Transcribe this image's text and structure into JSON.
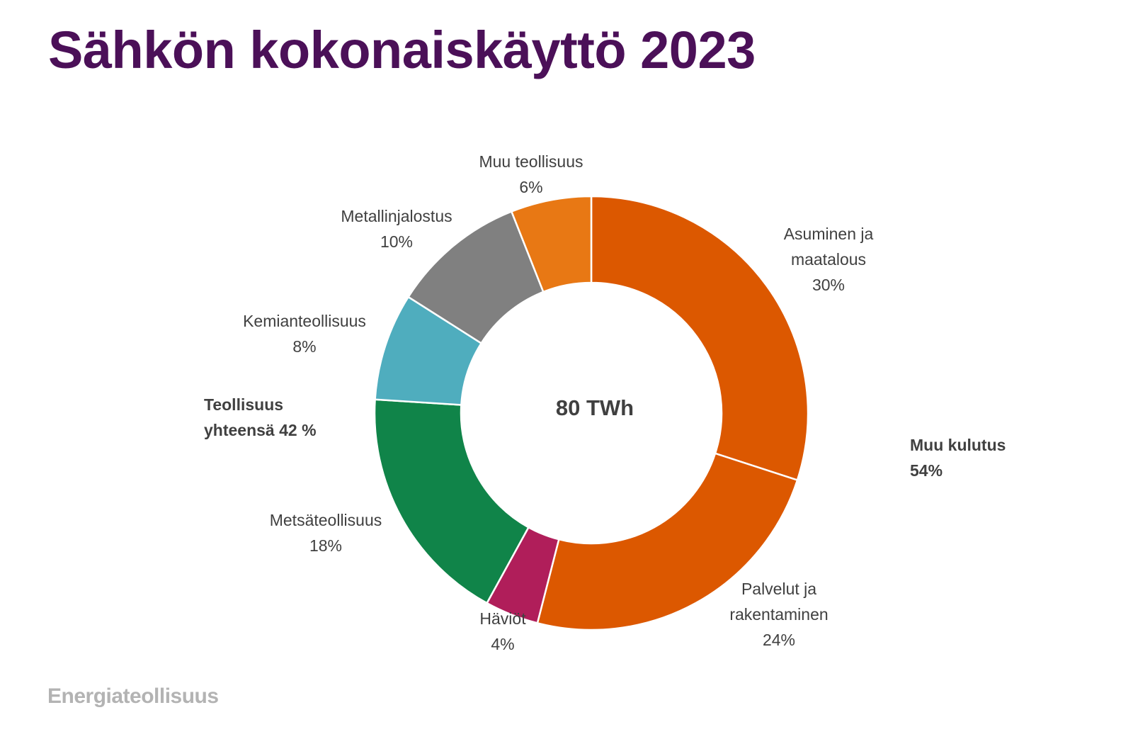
{
  "title": "Sähkön kokonaiskäyttö 2023",
  "brand": "Energiateollisuus",
  "colors": {
    "title": "#4b1058",
    "text": "#404040",
    "brand": "#b3b3b3"
  },
  "chart_data": {
    "type": "pie",
    "variant": "donut",
    "center_label": "80 TWh",
    "slices": [
      {
        "label_lines": [
          "Asuminen ja",
          "maatalous"
        ],
        "value_label": "30%",
        "value": 30,
        "color": "#dc5800"
      },
      {
        "label_lines": [
          "Palvelut ja",
          "rakentaminen"
        ],
        "value_label": "24%",
        "value": 24,
        "color": "#dc5800"
      },
      {
        "label_lines": [
          "Häviöt"
        ],
        "value_label": "4%",
        "value": 4,
        "color": "#b01e5a"
      },
      {
        "label_lines": [
          "Metsäteollisuus"
        ],
        "value_label": "18%",
        "value": 18,
        "color": "#108449"
      },
      {
        "label_lines": [
          "Kemianteollisuus"
        ],
        "value_label": "8%",
        "value": 8,
        "color": "#4fadbe"
      },
      {
        "label_lines": [
          "Metallinjalostus"
        ],
        "value_label": "10%",
        "value": 10,
        "color": "#808080"
      },
      {
        "label_lines": [
          "Muu teollisuus"
        ],
        "value_label": "6%",
        "value": 6,
        "color": "#e87814"
      }
    ],
    "group_labels": {
      "industry": [
        "Teollisuus",
        "yhteensä 42 %"
      ],
      "other": [
        "Muu kulutus",
        "54%"
      ]
    }
  }
}
